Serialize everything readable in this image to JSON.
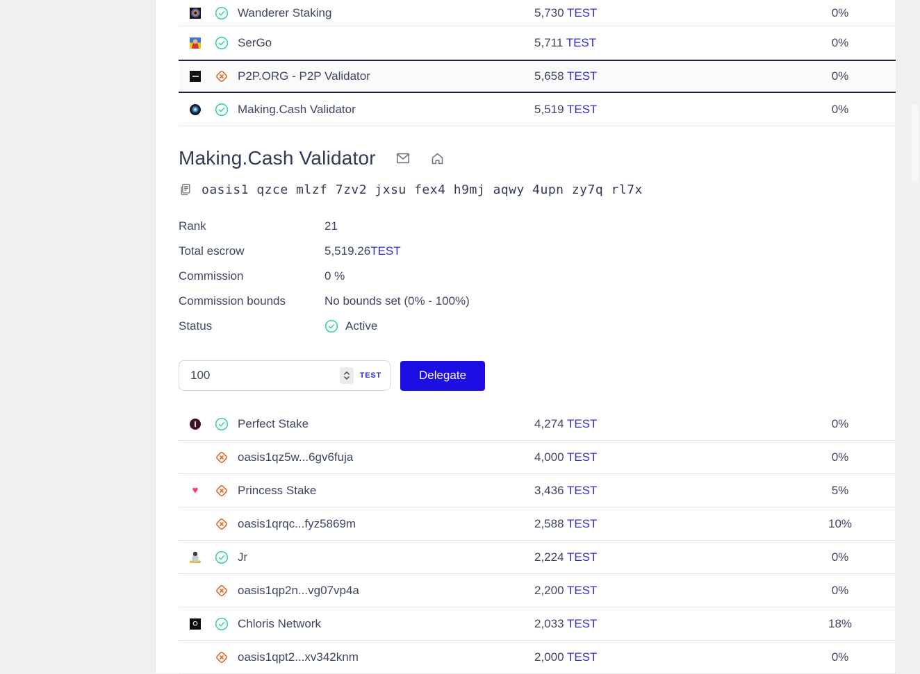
{
  "colors": {
    "token_link": "#2f2ad8",
    "primary_button": "#1c0de2",
    "success_green": "#3ad6a5",
    "warning_orange": "#de6e1e",
    "text": "#3c4663",
    "heading": "#2d3a58",
    "row_border": "#e4e4e6",
    "highlight_border": "#192740",
    "page_bg": "#f0f0f1"
  },
  "icons": {
    "status_ok": "check-circle-icon",
    "status_warning": "warning-diamond-icon",
    "email": "envelope-icon",
    "homepage": "home-icon",
    "copy": "copy-document-icon",
    "stepper": "chevron-up-down-icon"
  },
  "upper_table": {
    "rows": [
      {
        "name": "Wanderer Staking",
        "amount": "5,730",
        "token": "TEST",
        "fee": "0%",
        "status": "ok",
        "avatar": "wanderer",
        "highlighted": false
      },
      {
        "name": "SerGo",
        "amount": "5,711",
        "token": "TEST",
        "fee": "0%",
        "status": "ok",
        "avatar": "sergo",
        "highlighted": false
      },
      {
        "name": "P2P.ORG - P2P Validator",
        "amount": "5,658",
        "token": "TEST",
        "fee": "0%",
        "status": "warning",
        "avatar": "p2p",
        "highlighted": true
      },
      {
        "name": "Making.Cash Validator",
        "amount": "5,519",
        "token": "TEST",
        "fee": "0%",
        "status": "ok",
        "avatar": "making",
        "highlighted": false
      }
    ]
  },
  "validator_detail": {
    "title": "Making.Cash Validator",
    "address": "oasis1 qzce mlzf 7zv2 jxsu fex4 h9mj aqwy 4upn zy7q rl7x",
    "fields": [
      {
        "label": "Rank",
        "value": "21"
      },
      {
        "label": "Total escrow",
        "value": "5,519.26",
        "token": "TEST"
      },
      {
        "label": "Commission",
        "value": "0 %"
      },
      {
        "label": "Commission bounds",
        "value": "No bounds set (0% - 100%)"
      },
      {
        "label": "Status",
        "value": "Active",
        "status_icon": true
      }
    ]
  },
  "delegate_form": {
    "amount_value": "100",
    "token_label": "TEST",
    "submit_label": "Delegate"
  },
  "lower_table": {
    "rows": [
      {
        "name": "Perfect Stake",
        "amount": "4,274",
        "token": "TEST",
        "fee": "0%",
        "status": "ok",
        "avatar": "perfect",
        "highlighted": false
      },
      {
        "name": "oasis1qz5w...6gv6fuja",
        "amount": "4,000",
        "token": "TEST",
        "fee": "0%",
        "status": "warning",
        "avatar": null,
        "highlighted": false
      },
      {
        "name": "Princess Stake",
        "amount": "3,436",
        "token": "TEST",
        "fee": "5%",
        "status": "warning",
        "avatar": "princess",
        "highlighted": false
      },
      {
        "name": "oasis1qrqc...fyz5869m",
        "amount": "2,588",
        "token": "TEST",
        "fee": "10%",
        "status": "warning",
        "avatar": null,
        "highlighted": false
      },
      {
        "name": "Jr",
        "amount": "2,224",
        "token": "TEST",
        "fee": "0%",
        "status": "ok",
        "avatar": "jr",
        "highlighted": false
      },
      {
        "name": "oasis1qp2n...vg07vp4a",
        "amount": "2,200",
        "token": "TEST",
        "fee": "0%",
        "status": "warning",
        "avatar": null,
        "highlighted": false
      },
      {
        "name": "Chloris Network",
        "amount": "2,033",
        "token": "TEST",
        "fee": "18%",
        "status": "ok",
        "avatar": "chloris",
        "highlighted": false
      },
      {
        "name": "oasis1qpt2...xv342knm",
        "amount": "2,000",
        "token": "TEST",
        "fee": "0%",
        "status": "warning",
        "avatar": null,
        "highlighted": false
      }
    ]
  }
}
